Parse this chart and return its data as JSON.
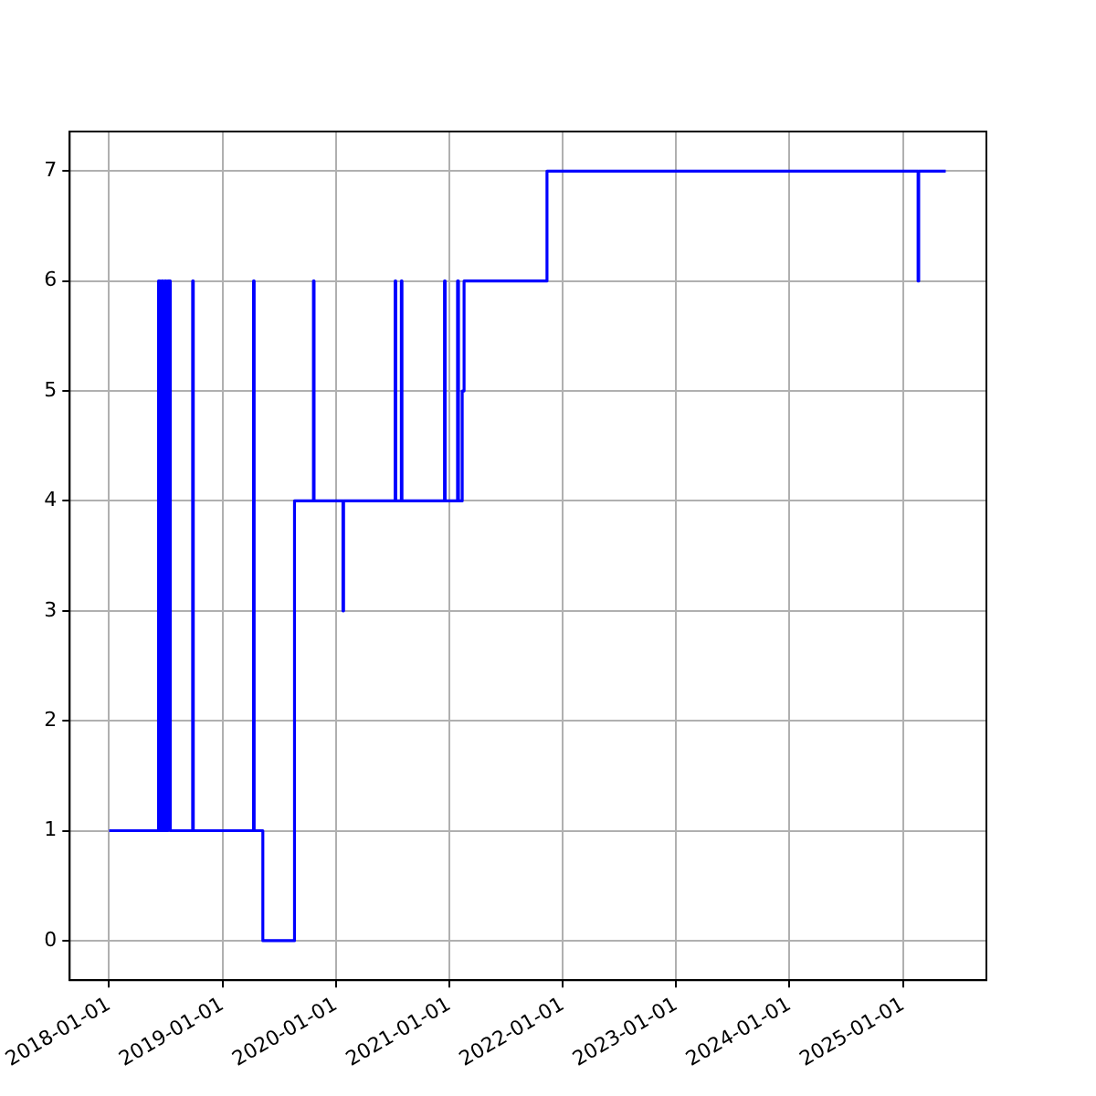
{
  "chart_data": {
    "type": "step",
    "x": [
      "2018-01-01",
      "2018-06-09",
      "2018-06-14",
      "2018-06-19",
      "2018-06-24",
      "2018-06-29",
      "2018-07-04",
      "2018-07-09",
      "2018-07-17",
      "2018-09-27",
      "2018-09-29",
      "2019-04-11",
      "2019-04-13",
      "2019-05-11",
      "2019-08-21",
      "2019-10-21",
      "2019-10-23",
      "2020-01-24",
      "2020-01-26",
      "2020-07-10",
      "2020-07-12",
      "2020-07-30",
      "2020-08-01",
      "2020-12-16",
      "2020-12-18",
      "2021-01-27",
      "2021-01-30",
      "2021-02-11",
      "2021-02-17",
      "2021-11-11",
      "2025-02-18",
      "2025-02-20",
      "2025-05-18"
    ],
    "series": [
      {
        "color": "#0000ff",
        "values": [
          1,
          6,
          1,
          6,
          1,
          6,
          1,
          6,
          1,
          6,
          1,
          6,
          1,
          0,
          4,
          6,
          4,
          3,
          4,
          6,
          4,
          6,
          4,
          6,
          4,
          6,
          4,
          5,
          6,
          7,
          6,
          7,
          7
        ]
      }
    ],
    "xlim": [
      "2017-08-27",
      "2025-09-26"
    ],
    "xticks": [
      "2018-01-01",
      "2019-01-01",
      "2020-01-01",
      "2021-01-01",
      "2022-01-01",
      "2023-01-01",
      "2024-01-01",
      "2025-01-01"
    ],
    "ylim": [
      -0.36,
      7.36
    ],
    "yticks": [
      0,
      1,
      2,
      3,
      4,
      5,
      6,
      7
    ],
    "grid": true,
    "legend": false
  }
}
